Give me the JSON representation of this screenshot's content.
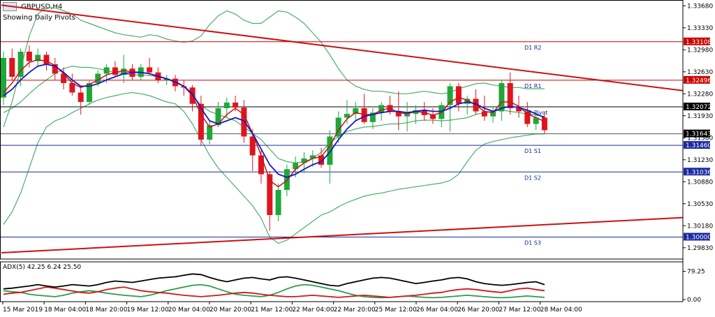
{
  "header": {
    "symbol": "GBPUSD,H4",
    "subtitle": "Showing Daily Pivots"
  },
  "chart_data": {
    "type": "candlestick",
    "price_ticks": [
      "1.33680",
      "1.33330",
      "1.32980",
      "1.32630",
      "1.32280",
      "1.31930",
      "1.31580",
      "1.31230",
      "1.30880",
      "1.30530",
      "1.30180",
      "1.29830"
    ],
    "price_range": [
      1.2965,
      1.3375
    ],
    "levels": [
      {
        "name": "D1 R2",
        "value": 1.33108,
        "box": "1.33108",
        "color": "#cc0000"
      },
      {
        "name": "D1 R1",
        "value": 1.32496,
        "box": "1.32496",
        "color": "#cc0000"
      },
      {
        "name": "D1 Pivot",
        "value": 1.32072,
        "box": "1.32072",
        "color": "#000000"
      },
      {
        "name": "D1 S1",
        "value": 1.3146,
        "box": "1.31460",
        "color": "#1a2aa0"
      },
      {
        "name": "D1 S2",
        "value": 1.31036,
        "box": "1.31036",
        "color": "#1a2aa0"
      },
      {
        "name": "D1 S3",
        "value": 1.3,
        "box": "1.30000",
        "color": "#1a2aa0"
      }
    ],
    "current_price": {
      "value": 1.31643,
      "box": "1.31643"
    },
    "trendlines": [
      {
        "from": [
          0,
          1.3369
        ],
        "to": [
          100,
          1.3233
        ]
      },
      {
        "from": [
          0,
          1.2975
        ],
        "to": [
          100,
          1.3031
        ]
      }
    ],
    "candles": [
      [
        1.3222,
        1.3295,
        1.321,
        1.3285
      ],
      [
        1.3285,
        1.33,
        1.325,
        1.3255
      ],
      [
        1.3255,
        1.33,
        1.324,
        1.3295
      ],
      [
        1.3295,
        1.3305,
        1.327,
        1.328
      ],
      [
        1.328,
        1.33,
        1.327,
        1.329
      ],
      [
        1.329,
        1.3295,
        1.3265,
        1.3275
      ],
      [
        1.3275,
        1.3285,
        1.325,
        1.326
      ],
      [
        1.326,
        1.327,
        1.3235,
        1.3245
      ],
      [
        1.3245,
        1.326,
        1.3225,
        1.323
      ],
      [
        1.323,
        1.324,
        1.3195,
        1.3215
      ],
      [
        1.3215,
        1.325,
        1.321,
        1.3245
      ],
      [
        1.3245,
        1.3265,
        1.324,
        1.326
      ],
      [
        1.326,
        1.3275,
        1.3245,
        1.327
      ],
      [
        1.327,
        1.328,
        1.3255,
        1.3258
      ],
      [
        1.3258,
        1.329,
        1.3245,
        1.3268
      ],
      [
        1.3268,
        1.3275,
        1.325,
        1.3255
      ],
      [
        1.3255,
        1.3275,
        1.325,
        1.327
      ],
      [
        1.327,
        1.3285,
        1.3258,
        1.3262
      ],
      [
        1.3262,
        1.327,
        1.3245,
        1.325
      ],
      [
        1.325,
        1.3258,
        1.3242,
        1.3252
      ],
      [
        1.3252,
        1.3258,
        1.3232,
        1.324
      ],
      [
        1.324,
        1.325,
        1.3225,
        1.3238
      ],
      [
        1.3238,
        1.3242,
        1.32,
        1.3212
      ],
      [
        1.3212,
        1.3225,
        1.3145,
        1.3155
      ],
      [
        1.3155,
        1.3185,
        1.3148,
        1.3178
      ],
      [
        1.3178,
        1.3215,
        1.3175,
        1.3205
      ],
      [
        1.3205,
        1.3222,
        1.319,
        1.3214
      ],
      [
        1.3214,
        1.3225,
        1.32,
        1.3206
      ],
      [
        1.3206,
        1.3218,
        1.315,
        1.316
      ],
      [
        1.316,
        1.3172,
        1.3105,
        1.313
      ],
      [
        1.313,
        1.314,
        1.3085,
        1.31
      ],
      [
        1.31,
        1.3105,
        1.301,
        1.3035
      ],
      [
        1.3035,
        1.3085,
        1.3025,
        1.3075
      ],
      [
        1.3075,
        1.3115,
        1.3065,
        1.3108
      ],
      [
        1.3108,
        1.3128,
        1.3095,
        1.3118
      ],
      [
        1.3118,
        1.3135,
        1.3102,
        1.3125
      ],
      [
        1.3125,
        1.3138,
        1.3112,
        1.313
      ],
      [
        1.313,
        1.3142,
        1.311,
        1.3115
      ],
      [
        1.3115,
        1.317,
        1.3085,
        1.316
      ],
      [
        1.316,
        1.32,
        1.315,
        1.319
      ],
      [
        1.319,
        1.3218,
        1.318,
        1.3196
      ],
      [
        1.3196,
        1.3215,
        1.3185,
        1.3205
      ],
      [
        1.3205,
        1.3228,
        1.318,
        1.3183
      ],
      [
        1.3183,
        1.3205,
        1.3172,
        1.3198
      ],
      [
        1.3198,
        1.3215,
        1.3185,
        1.321
      ],
      [
        1.321,
        1.3225,
        1.3195,
        1.32
      ],
      [
        1.32,
        1.3232,
        1.317,
        1.3192
      ],
      [
        1.3192,
        1.3215,
        1.3168,
        1.3196
      ],
      [
        1.3196,
        1.321,
        1.318,
        1.3202
      ],
      [
        1.3202,
        1.3215,
        1.3185,
        1.3194
      ],
      [
        1.3194,
        1.3205,
        1.318,
        1.3188
      ],
      [
        1.3188,
        1.3215,
        1.3175,
        1.321
      ],
      [
        1.321,
        1.3245,
        1.3168,
        1.324
      ],
      [
        1.324,
        1.3245,
        1.32,
        1.3212
      ],
      [
        1.3212,
        1.3225,
        1.3195,
        1.322
      ],
      [
        1.322,
        1.3235,
        1.3195,
        1.32
      ],
      [
        1.32,
        1.3225,
        1.3185,
        1.3192
      ],
      [
        1.3192,
        1.3208,
        1.3182,
        1.32
      ],
      [
        1.32,
        1.325,
        1.3185,
        1.3245
      ],
      [
        1.3245,
        1.3262,
        1.3195,
        1.3205
      ],
      [
        1.3205,
        1.3225,
        1.319,
        1.32
      ],
      [
        1.32,
        1.3215,
        1.3175,
        1.318
      ],
      [
        1.318,
        1.3195,
        1.317,
        1.319
      ],
      [
        1.319,
        1.32,
        1.3165,
        1.317
      ]
    ],
    "bollinger": {
      "upper": [
        1.3175,
        1.3215,
        1.3268,
        1.332,
        1.3355,
        1.3365,
        1.3365,
        1.336,
        1.3355,
        1.3345,
        1.334,
        1.3335,
        1.333,
        1.3325,
        1.3322,
        1.332,
        1.3318,
        1.3322,
        1.332,
        1.3315,
        1.3312,
        1.331,
        1.3312,
        1.332,
        1.3338,
        1.3352,
        1.336,
        1.3355,
        1.3345,
        1.334,
        1.334,
        1.335,
        1.336,
        1.3358,
        1.335,
        1.334,
        1.3325,
        1.331,
        1.329,
        1.3268,
        1.325,
        1.324,
        1.3235,
        1.3232,
        1.3232,
        1.323,
        1.3228,
        1.3228,
        1.323,
        1.3232,
        1.323,
        1.3228,
        1.323,
        1.3236,
        1.324,
        1.3244,
        1.3245,
        1.3242,
        1.324,
        1.3238,
        1.3238,
        1.3236,
        1.3236,
        1.3236
      ],
      "lower": [
        1.302,
        1.304,
        1.307,
        1.311,
        1.315,
        1.3175,
        1.3185,
        1.319,
        1.3198,
        1.3205,
        1.3212,
        1.3218,
        1.3222,
        1.3225,
        1.3228,
        1.323,
        1.3228,
        1.3225,
        1.322,
        1.3215,
        1.3212,
        1.32,
        1.318,
        1.3155,
        1.313,
        1.311,
        1.3095,
        1.308,
        1.3065,
        1.305,
        1.303,
        1.3,
        1.299,
        1.2995,
        1.3005,
        1.3015,
        1.3025,
        1.3035,
        1.304,
        1.3048,
        1.3055,
        1.306,
        1.3065,
        1.3068,
        1.307,
        1.3073,
        1.3076,
        1.3078,
        1.308,
        1.3082,
        1.3084,
        1.3086,
        1.309,
        1.31,
        1.312,
        1.3138,
        1.3148,
        1.3152,
        1.3155,
        1.3158,
        1.316,
        1.3162,
        1.3164,
        1.3164
      ],
      "middle": [
        1.3198,
        1.3205,
        1.3215,
        1.3228,
        1.324,
        1.325,
        1.326,
        1.3268,
        1.3272,
        1.327,
        1.327,
        1.3268,
        1.3265,
        1.3262,
        1.326,
        1.3258,
        1.3258,
        1.3257,
        1.3255,
        1.3252,
        1.3248,
        1.324,
        1.3225,
        1.321,
        1.32,
        1.3195,
        1.319,
        1.3185,
        1.3175,
        1.3165,
        1.3155,
        1.314,
        1.3125,
        1.312,
        1.3118,
        1.312,
        1.3125,
        1.3135,
        1.315,
        1.316,
        1.3168,
        1.3172,
        1.3175,
        1.3176,
        1.3178,
        1.318,
        1.318,
        1.3182,
        1.3185,
        1.3186,
        1.3186,
        1.3185,
        1.3186,
        1.3188,
        1.319,
        1.3195,
        1.3198,
        1.32,
        1.3202,
        1.32,
        1.3198,
        1.3196,
        1.3194,
        1.3192
      ]
    },
    "ma_blue": [
      1.3225,
      1.3235,
      1.325,
      1.3262,
      1.3272,
      1.3275,
      1.3272,
      1.3262,
      1.325,
      1.324,
      1.324,
      1.3244,
      1.325,
      1.3255,
      1.326,
      1.3262,
      1.3262,
      1.326,
      1.3256,
      1.3252,
      1.3247,
      1.324,
      1.3228,
      1.3205,
      1.3185,
      1.318,
      1.3185,
      1.319,
      1.3185,
      1.3165,
      1.314,
      1.3115,
      1.31,
      1.3095,
      1.31,
      1.3108,
      1.3115,
      1.312,
      1.3135,
      1.3155,
      1.3172,
      1.3185,
      1.3192,
      1.3195,
      1.3198,
      1.32,
      1.32,
      1.3198,
      1.32,
      1.3202,
      1.32,
      1.32,
      1.3205,
      1.3212,
      1.3215,
      1.3212,
      1.3205,
      1.32,
      1.3205,
      1.3208,
      1.3206,
      1.3202,
      1.3196,
      1.319
    ],
    "ma_red": [
      1.323,
      1.3245,
      1.3265,
      1.3278,
      1.3282,
      1.328,
      1.3273,
      1.326,
      1.3245,
      1.3238,
      1.3243,
      1.325,
      1.3258,
      1.3262,
      1.3265,
      1.3263,
      1.3262,
      1.326,
      1.3255,
      1.3252,
      1.3246,
      1.324,
      1.3225,
      1.3195,
      1.3175,
      1.318,
      1.3195,
      1.3205,
      1.3195,
      1.3165,
      1.313,
      1.309,
      1.308,
      1.309,
      1.3108,
      1.3118,
      1.3125,
      1.3128,
      1.3145,
      1.317,
      1.3188,
      1.3198,
      1.3195,
      1.3195,
      1.3202,
      1.3205,
      1.3198,
      1.3196,
      1.32,
      1.3198,
      1.3194,
      1.3198,
      1.3215,
      1.3222,
      1.3218,
      1.321,
      1.32,
      1.3198,
      1.3215,
      1.3215,
      1.3208,
      1.3196,
      1.319,
      1.3184
    ],
    "time_labels": [
      "15 Mar 2019",
      "18 Mar 04:00",
      "18 Mar 20:00",
      "19 Mar 12:00",
      "20 Mar 04:00",
      "20 Mar 20:00",
      "21 Mar 12:00",
      "22 Mar 04:00",
      "22 Mar 20:00",
      "25 Mar 12:00",
      "26 Mar 04:00",
      "26 Mar 20:00",
      "27 Mar 12:00",
      "28 Mar 04:00"
    ],
    "adx": {
      "label": "ADX(5) 42.25 6.24 25.50",
      "ticks": [
        "79.25",
        "0.00"
      ],
      "range": [
        0,
        100
      ],
      "adx": [
        30,
        32,
        35,
        38,
        42,
        38,
        35,
        38,
        42,
        40,
        38,
        42,
        48,
        52,
        50,
        48,
        52,
        56,
        60,
        62,
        64,
        68,
        72,
        70,
        62,
        55,
        50,
        55,
        60,
        62,
        58,
        55,
        62,
        64,
        60,
        55,
        50,
        45,
        40,
        38,
        45,
        50,
        55,
        60,
        62,
        60,
        55,
        50,
        45,
        48,
        52,
        55,
        60,
        62,
        58,
        50,
        45,
        42,
        40,
        42,
        45,
        48,
        50,
        42
      ],
      "plus_di": [
        15,
        18,
        20,
        25,
        30,
        35,
        32,
        28,
        24,
        20,
        18,
        22,
        28,
        32,
        35,
        30,
        25,
        22,
        20,
        18,
        15,
        12,
        10,
        8,
        10,
        12,
        15,
        18,
        20,
        18,
        15,
        12,
        10,
        8,
        8,
        10,
        12,
        10,
        8,
        6,
        8,
        10,
        12,
        10,
        8,
        6,
        8,
        10,
        12,
        15,
        18,
        20,
        25,
        28,
        30,
        28,
        25,
        22,
        20,
        25,
        30,
        32,
        28,
        25
      ],
      "minus_di": [
        25,
        22,
        20,
        15,
        12,
        10,
        8,
        12,
        18,
        22,
        25,
        22,
        18,
        15,
        12,
        10,
        8,
        12,
        18,
        25,
        30,
        35,
        40,
        42,
        38,
        30,
        22,
        15,
        12,
        10,
        8,
        12,
        20,
        30,
        38,
        42,
        40,
        35,
        30,
        25,
        18,
        12,
        8,
        6,
        5,
        6,
        8,
        10,
        8,
        6,
        5,
        6,
        8,
        10,
        12,
        10,
        8,
        6,
        5,
        6,
        8,
        10,
        8,
        6
      ]
    }
  },
  "colors": {
    "bull": "#1ea83a",
    "bear": "#e0141e",
    "bands": "#4caf6a",
    "ma_blue": "#1518c0",
    "ma_red": "#cc1111",
    "trend": "#cc1111"
  }
}
